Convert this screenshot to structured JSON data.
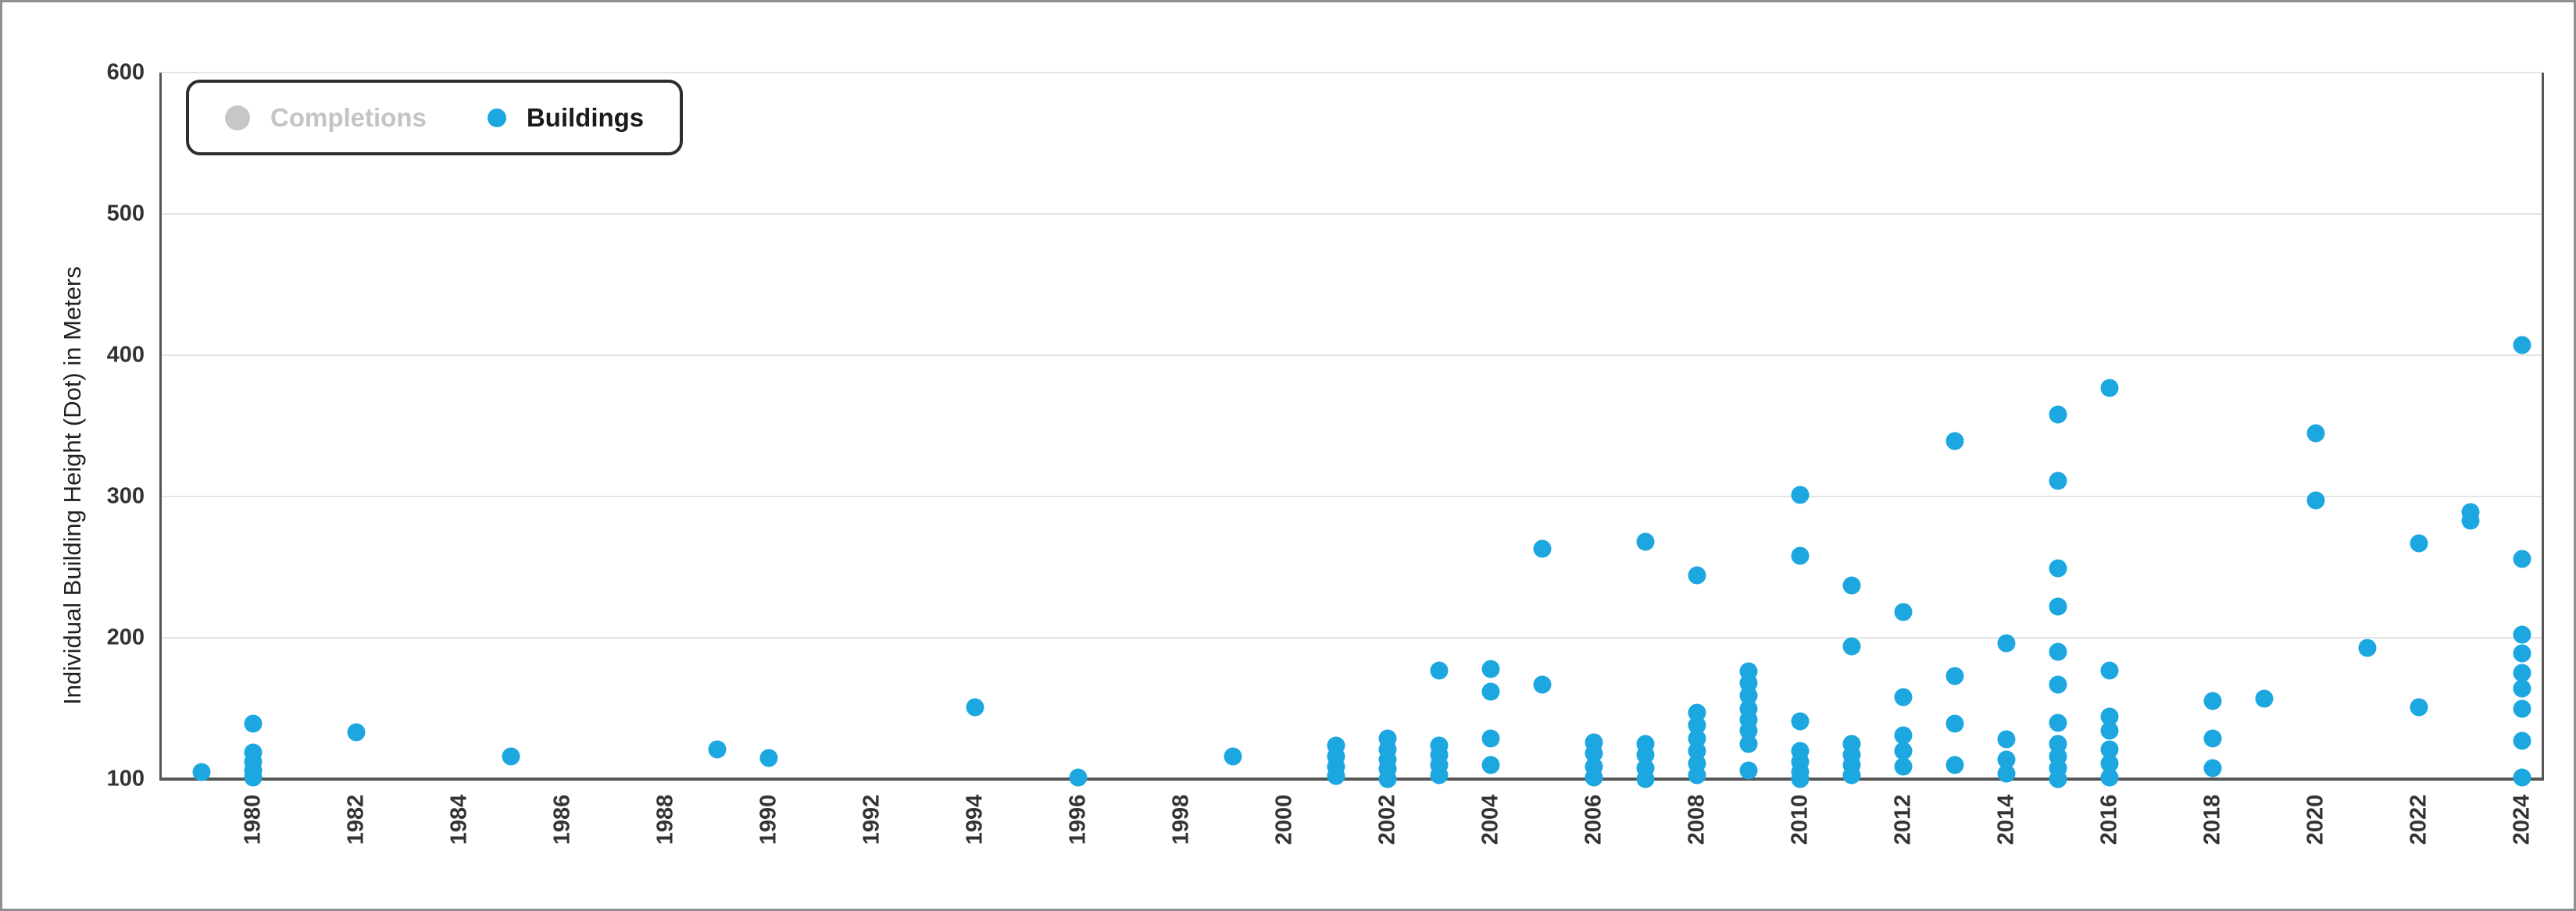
{
  "legend": {
    "items": [
      {
        "label": "Completions",
        "marker_color": "#c7c7c7",
        "text_color": "#c4c4c4",
        "disabled": true
      },
      {
        "label": "Buildings",
        "marker_color": "#1ca7e0",
        "text_color": "#1a1a1a",
        "disabled": false
      }
    ]
  },
  "colors": {
    "accent_blue": "#1ca7e0",
    "disabled_gray": "#c7c7c7",
    "gridline": "#e4e4e4",
    "axis": "#565656",
    "tick_text": "#333333",
    "outer_border": "#8f8f8f"
  },
  "chart_data": {
    "type": "scatter",
    "title": "",
    "xlabel": "",
    "ylabel": "Individual Building Height (Dot) in Meters",
    "ylim": [
      100,
      600
    ],
    "xlim": [
      1978.2,
      2024.4
    ],
    "yticks": [
      100,
      200,
      300,
      400,
      500,
      600
    ],
    "xticks": [
      1980,
      1982,
      1984,
      1986,
      1988,
      1990,
      1992,
      1994,
      1996,
      1998,
      2000,
      2002,
      2004,
      2006,
      2008,
      2010,
      2012,
      2014,
      2016,
      2018,
      2020,
      2022,
      2024
    ],
    "grid": "horizontal",
    "legend_position": "top-left",
    "series": [
      {
        "name": "Completions",
        "color": "#c7c7c7",
        "visible": false,
        "points": []
      },
      {
        "name": "Buildings",
        "color": "#1ca7e0",
        "visible": true,
        "points": [
          {
            "year": 1979,
            "heights": [
              105
            ]
          },
          {
            "year": 1980,
            "heights": [
              139,
              119,
              112,
              106,
              101
            ]
          },
          {
            "year": 1982,
            "heights": [
              133
            ]
          },
          {
            "year": 1985,
            "heights": [
              116
            ]
          },
          {
            "year": 1989,
            "heights": [
              121
            ]
          },
          {
            "year": 1990,
            "heights": [
              115
            ]
          },
          {
            "year": 1994,
            "heights": [
              151
            ]
          },
          {
            "year": 1996,
            "heights": [
              101
            ]
          },
          {
            "year": 1999,
            "heights": [
              116
            ]
          },
          {
            "year": 2001,
            "heights": [
              124,
              116,
              109,
              102
            ]
          },
          {
            "year": 2002,
            "heights": [
              129,
              121,
              114,
              107,
              100
            ]
          },
          {
            "year": 2003,
            "heights": [
              177,
              124,
              117,
              110,
              103
            ]
          },
          {
            "year": 2004,
            "heights": [
              178,
              162,
              129,
              110
            ]
          },
          {
            "year": 2005,
            "heights": [
              263,
              167
            ]
          },
          {
            "year": 2006,
            "heights": [
              126,
              118,
              109,
              101
            ]
          },
          {
            "year": 2007,
            "heights": [
              268,
              125,
              117,
              108,
              100
            ]
          },
          {
            "year": 2008,
            "heights": [
              244,
              147,
              138,
              129,
              120,
              111,
              103
            ]
          },
          {
            "year": 2009,
            "heights": [
              176,
              168,
              159,
              150,
              142,
              134,
              125,
              106
            ]
          },
          {
            "year": 2010,
            "heights": [
              301,
              258,
              141,
              120,
              112,
              105,
              100
            ]
          },
          {
            "year": 2011,
            "heights": [
              237,
              194,
              125,
              117,
              110,
              103
            ]
          },
          {
            "year": 2012,
            "heights": [
              218,
              158,
              131,
              120,
              109
            ]
          },
          {
            "year": 2013,
            "heights": [
              339,
              173,
              139,
              110
            ]
          },
          {
            "year": 2014,
            "heights": [
              196,
              128,
              114,
              104
            ]
          },
          {
            "year": 2015,
            "heights": [
              358,
              311,
              249,
              222,
              190,
              167,
              140,
              125,
              116,
              108,
              100
            ]
          },
          {
            "year": 2016,
            "heights": [
              377,
              177,
              144,
              134,
              121,
              111,
              101
            ]
          },
          {
            "year": 2018,
            "heights": [
              155,
              129,
              108
            ]
          },
          {
            "year": 2019,
            "heights": [
              157
            ]
          },
          {
            "year": 2020,
            "heights": [
              345,
              297
            ]
          },
          {
            "year": 2021,
            "heights": [
              193
            ]
          },
          {
            "year": 2022,
            "heights": [
              267,
              151
            ]
          },
          {
            "year": 2023,
            "heights": [
              289,
              283
            ]
          },
          {
            "year": 2024,
            "heights": [
              407,
              256,
              202,
              189,
              175,
              164,
              150,
              127,
              101
            ]
          }
        ]
      }
    ]
  }
}
